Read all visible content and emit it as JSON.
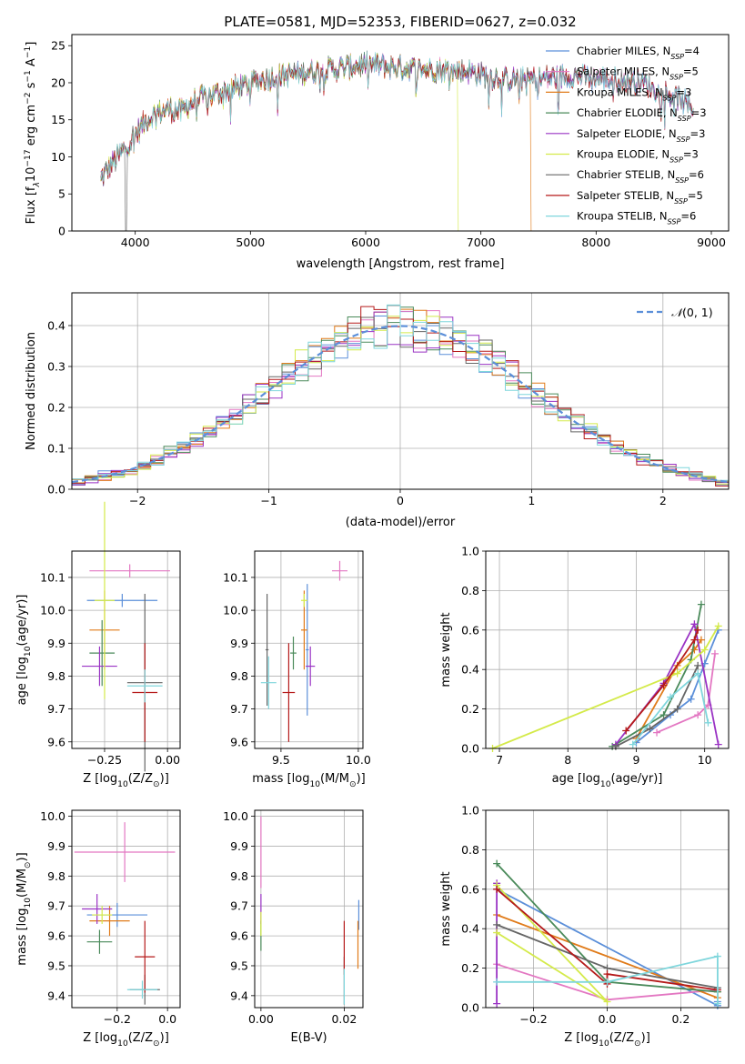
{
  "figure_title": "PLATE=0581, MJD=52353, FIBERID=0627, z=0.032",
  "colors": {
    "Chabrier MILES": "#5b8fd9",
    "Salpeter MILES": "#e377c2",
    "Kroupa MILES": "#e07b1a",
    "Chabrier ELODIE": "#4a8a5a",
    "Salpeter ELODIE": "#9a33c4",
    "Kroupa ELODIE": "#d4ea4a",
    "Chabrier STELIB": "#666666",
    "Salpeter STELIB": "#b51a1a",
    "Kroupa STELIB": "#7fd6dc"
  },
  "chart_data": [
    {
      "id": "spectrum",
      "type": "line",
      "title": "PLATE=0581, MJD=52353, FIBERID=0627, z=0.032",
      "xlabel": "wavelength [Angstrom, rest frame]",
      "ylabel_parts": [
        "Flux [f",
        "λ",
        "10",
        "−17",
        " erg cm",
        "−2",
        " s",
        "−1",
        " A",
        "−1",
        "]"
      ],
      "xlim": [
        3450,
        9150
      ],
      "ylim": [
        0,
        26.5
      ],
      "xticks": [
        4000,
        5000,
        6000,
        7000,
        8000,
        9000
      ],
      "yticks": [
        0,
        5,
        10,
        15,
        20,
        25
      ],
      "grid": false,
      "legend_position": "upper-right",
      "series": [
        {
          "name": "Chabrier MILES",
          "nssp": "4",
          "x_range": [
            3700,
            8850
          ]
        },
        {
          "name": "Salpeter MILES",
          "nssp": "5",
          "x_range": [
            3700,
            8850
          ]
        },
        {
          "name": "Kroupa MILES",
          "nssp": "3",
          "x_range": [
            3700,
            8850
          ],
          "drop_at": 7430
        },
        {
          "name": "Chabrier ELODIE",
          "nssp": "3",
          "x_range": [
            3700,
            8850
          ]
        },
        {
          "name": "Salpeter ELODIE",
          "nssp": "3",
          "x_range": [
            3700,
            8850
          ]
        },
        {
          "name": "Kroupa ELODIE",
          "nssp": "3",
          "x_range": [
            3700,
            8850
          ],
          "drop_at": 6800
        },
        {
          "name": "Chabrier STELIB",
          "nssp": "6",
          "x_range": [
            3700,
            8850
          ],
          "spike_at": 3920
        },
        {
          "name": "Salpeter STELIB",
          "nssp": "5",
          "x_range": [
            3700,
            8850
          ]
        },
        {
          "name": "Kroupa STELIB",
          "nssp": "6",
          "x_range": [
            3700,
            8850
          ]
        }
      ],
      "continuum": {
        "x": [
          3700,
          3800,
          3900,
          4000,
          4100,
          4200,
          4300,
          4400,
          4500,
          4700,
          4900,
          5100,
          5300,
          5500,
          5800,
          6000,
          6300,
          6600,
          6900,
          7200,
          7500,
          7800,
          8100,
          8400,
          8700,
          8850
        ],
        "y": [
          7,
          9,
          11,
          13,
          15,
          16,
          16.5,
          16,
          17.5,
          18.5,
          19.5,
          20.5,
          21,
          21.5,
          22,
          22.5,
          22,
          21.8,
          21.5,
          20.5,
          20.5,
          21,
          20.5,
          20,
          18,
          16.5
        ]
      }
    },
    {
      "id": "residuals",
      "type": "histogram",
      "xlabel": "(data-model)/error",
      "ylabel": "Normed distribution",
      "xlim": [
        -2.5,
        2.5
      ],
      "ylim": [
        0,
        0.48
      ],
      "xticks": [
        -2,
        -1,
        0,
        1,
        2
      ],
      "yticks": [
        0.0,
        0.1,
        0.2,
        0.3,
        0.4
      ],
      "bin_width": 0.1,
      "grid": true,
      "legend_position": "upper-right",
      "reference_curve": {
        "name": "N(0,1)",
        "label_parts": [
          "𝒩",
          "(0, 1)"
        ],
        "color": "#5b8fd9",
        "style": "dashed"
      }
    },
    {
      "id": "age-vs-z",
      "type": "errorbar",
      "xlabel_parts": [
        "Z [log",
        "10",
        "(Z/Z",
        "⊙",
        ")]"
      ],
      "ylabel_parts": [
        "age  [log",
        "10",
        "(age/yr)]"
      ],
      "xlim": [
        -0.38,
        0.05
      ],
      "ylim": [
        9.58,
        10.18
      ],
      "xticks": [
        -0.25,
        0.0
      ],
      "xticklabels": [
        "−0.25",
        "0.00"
      ],
      "yticks": [
        9.6,
        9.7,
        9.8,
        9.9,
        10.0,
        10.1
      ],
      "grid": true,
      "points": [
        {
          "series": "Chabrier MILES",
          "x": -0.18,
          "xerr": 0.14,
          "y": 10.03,
          "yerr": 0.02
        },
        {
          "series": "Salpeter MILES",
          "x": -0.15,
          "xerr": 0.16,
          "y": 10.12,
          "yerr": 0.02
        },
        {
          "series": "Kroupa MILES",
          "x": -0.25,
          "xerr": 0.06,
          "y": 9.94,
          "yerr": 0.12
        },
        {
          "series": "Chabrier ELODIE",
          "x": -0.26,
          "xerr": 0.05,
          "y": 9.87,
          "yerr": 0.1
        },
        {
          "series": "Salpeter ELODIE",
          "x": -0.27,
          "xerr": 0.07,
          "y": 9.83,
          "yerr": 0.06
        },
        {
          "series": "Kroupa ELODIE",
          "x": -0.25,
          "xerr": 0.04,
          "y": 10.03,
          "yerr": 0.3
        },
        {
          "series": "Chabrier STELIB",
          "x": -0.09,
          "xerr": 0.07,
          "y": 9.78,
          "yerr": 0.27
        },
        {
          "series": "Salpeter STELIB",
          "x": -0.09,
          "xerr": 0.05,
          "y": 9.75,
          "yerr": 0.15
        },
        {
          "series": "Kroupa STELIB",
          "x": -0.09,
          "xerr": 0.07,
          "y": 9.77,
          "yerr": 0.05
        }
      ]
    },
    {
      "id": "age-vs-mass",
      "type": "errorbar",
      "xlabel_parts": [
        "mass [log",
        "10",
        "(M/M",
        "⊙",
        ")]"
      ],
      "ylabel": "",
      "xlim": [
        9.33,
        10.03
      ],
      "ylim": [
        9.58,
        10.18
      ],
      "xticks": [
        9.5,
        10.0
      ],
      "xticklabels": [
        "9.5",
        "10.0"
      ],
      "yticks": [
        9.6,
        9.7,
        9.8,
        9.9,
        10.0,
        10.1
      ],
      "grid": true,
      "points": [
        {
          "series": "Chabrier MILES",
          "x": 9.67,
          "xerr": 0.01,
          "y": 9.88,
          "yerr": 0.2
        },
        {
          "series": "Salpeter MILES",
          "x": 9.88,
          "xerr": 0.05,
          "y": 10.12,
          "yerr": 0.03
        },
        {
          "series": "Kroupa MILES",
          "x": 9.65,
          "xerr": 0.02,
          "y": 9.94,
          "yerr": 0.12
        },
        {
          "series": "Chabrier ELODIE",
          "x": 9.58,
          "xerr": 0.02,
          "y": 9.87,
          "yerr": 0.05
        },
        {
          "series": "Salpeter ELODIE",
          "x": 9.69,
          "xerr": 0.03,
          "y": 9.83,
          "yerr": 0.06
        },
        {
          "series": "Kroupa ELODIE",
          "x": 9.65,
          "xerr": 0.02,
          "y": 10.03,
          "yerr": 0.02
        },
        {
          "series": "Chabrier STELIB",
          "x": 9.41,
          "xerr": 0.01,
          "y": 9.88,
          "yerr": 0.17
        },
        {
          "series": "Salpeter STELIB",
          "x": 9.55,
          "xerr": 0.04,
          "y": 9.75,
          "yerr": 0.15
        },
        {
          "series": "Kroupa STELIB",
          "x": 9.42,
          "xerr": 0.05,
          "y": 9.78,
          "yerr": 0.08
        }
      ]
    },
    {
      "id": "weight-vs-age",
      "type": "line",
      "xlabel_parts": [
        "age  [log",
        "10",
        "(age/yr)]"
      ],
      "ylabel": "mass weight",
      "xlim": [
        6.8,
        10.35
      ],
      "ylim": [
        0,
        1
      ],
      "xticks": [
        7,
        8,
        9,
        10
      ],
      "yticks": [
        0.0,
        0.2,
        0.4,
        0.6,
        0.8,
        1.0
      ],
      "grid": true,
      "series": [
        {
          "name": "Chabrier MILES",
          "x": [
            9.0,
            9.5,
            9.8,
            10.0,
            10.2
          ],
          "y": [
            0.03,
            0.17,
            0.25,
            0.43,
            0.6
          ]
        },
        {
          "name": "Salpeter MILES",
          "x": [
            9.3,
            9.9,
            10.05,
            10.15
          ],
          "y": [
            0.08,
            0.17,
            0.22,
            0.48
          ]
        },
        {
          "name": "Kroupa MILES",
          "x": [
            9.0,
            9.6,
            9.85,
            9.95
          ],
          "y": [
            0.05,
            0.42,
            0.5,
            0.55
          ]
        },
        {
          "name": "Chabrier ELODIE",
          "x": [
            8.65,
            9.4,
            9.8,
            9.95
          ],
          "y": [
            0.01,
            0.17,
            0.45,
            0.73
          ]
        },
        {
          "name": "Salpeter ELODIE",
          "x": [
            8.7,
            9.4,
            9.85,
            10.2
          ],
          "y": [
            0.02,
            0.33,
            0.63,
            0.02
          ]
        },
        {
          "name": "Kroupa ELODIE",
          "x": [
            6.9,
            9.6,
            10.0,
            10.2
          ],
          "y": [
            0.0,
            0.38,
            0.5,
            0.62
          ]
        },
        {
          "name": "Chabrier STELIB",
          "x": [
            8.7,
            9.2,
            9.6,
            9.9
          ],
          "y": [
            0.01,
            0.1,
            0.2,
            0.42
          ]
        },
        {
          "name": "Salpeter STELIB",
          "x": [
            8.85,
            9.4,
            9.85,
            9.9
          ],
          "y": [
            0.09,
            0.32,
            0.55,
            0.6
          ]
        },
        {
          "name": "Kroupa STELIB",
          "x": [
            8.95,
            9.5,
            9.9,
            10.05
          ],
          "y": [
            0.02,
            0.26,
            0.38,
            0.13
          ]
        }
      ]
    },
    {
      "id": "mass-vs-z",
      "type": "errorbar",
      "xlabel_parts": [
        "Z [log",
        "10",
        "(Z/Z",
        "⊙",
        ")]"
      ],
      "ylabel_parts": [
        "mass [log",
        "10",
        "(M/M",
        "⊙",
        ")]"
      ],
      "xlim": [
        -0.38,
        0.05
      ],
      "ylim": [
        9.36,
        10.02
      ],
      "xticks": [
        -0.2,
        0.0
      ],
      "xticklabels": [
        "−0.2",
        "0.0"
      ],
      "yticks": [
        9.4,
        9.5,
        9.6,
        9.7,
        9.8,
        9.9,
        10.0
      ],
      "grid": true,
      "points": [
        {
          "series": "Chabrier MILES",
          "x": -0.2,
          "xerr": 0.12,
          "y": 9.67,
          "yerr": 0.04
        },
        {
          "series": "Salpeter MILES",
          "x": -0.17,
          "xerr": 0.2,
          "y": 9.88,
          "yerr": 0.1
        },
        {
          "series": "Kroupa MILES",
          "x": -0.23,
          "xerr": 0.08,
          "y": 9.65,
          "yerr": 0.05
        },
        {
          "series": "Chabrier ELODIE",
          "x": -0.27,
          "xerr": 0.05,
          "y": 9.58,
          "yerr": 0.04
        },
        {
          "series": "Salpeter ELODIE",
          "x": -0.28,
          "xerr": 0.06,
          "y": 9.69,
          "yerr": 0.05
        },
        {
          "series": "Kroupa ELODIE",
          "x": -0.26,
          "xerr": 0.04,
          "y": 9.67,
          "yerr": 0.03
        },
        {
          "series": "Chabrier STELIB",
          "x": -0.09,
          "xerr": 0.06,
          "y": 9.42,
          "yerr": 0.05
        },
        {
          "series": "Salpeter STELIB",
          "x": -0.09,
          "xerr": 0.04,
          "y": 9.53,
          "yerr": 0.12
        },
        {
          "series": "Kroupa STELIB",
          "x": -0.1,
          "xerr": 0.06,
          "y": 9.42,
          "yerr": 0.03
        }
      ]
    },
    {
      "id": "mass-vs-ebv",
      "type": "errorbar",
      "xlabel": "E(B-V)",
      "ylabel": "",
      "xlim": [
        -0.0015,
        0.0245
      ],
      "ylim": [
        9.36,
        10.02
      ],
      "xticks": [
        0.0,
        0.02
      ],
      "xticklabels": [
        "0.00",
        "0.02"
      ],
      "yticks": [
        9.4,
        9.5,
        9.6,
        9.7,
        9.8,
        9.9,
        10.0
      ],
      "grid": true,
      "points": [
        {
          "series": "Chabrier MILES",
          "x": 0.0235,
          "xerr": 0,
          "y": 9.67,
          "yerr": 0.05
        },
        {
          "series": "Salpeter MILES",
          "x": 0.0,
          "xerr": 0,
          "y": 9.88,
          "yerr": 0.12
        },
        {
          "series": "Kroupa MILES",
          "x": 0.0233,
          "xerr": 0,
          "y": 9.57,
          "yerr": 0.08
        },
        {
          "series": "Chabrier ELODIE",
          "x": 0.0,
          "xerr": 0,
          "y": 9.6,
          "yerr": 0.05
        },
        {
          "series": "Salpeter ELODIE",
          "x": 0.0,
          "xerr": 0,
          "y": 9.69,
          "yerr": 0.05
        },
        {
          "series": "Kroupa ELODIE",
          "x": 0.0,
          "xerr": 0,
          "y": 9.64,
          "yerr": 0.04
        },
        {
          "series": "Chabrier STELIB",
          "x": 0.02,
          "xerr": 0,
          "y": 9.45,
          "yerr": 0.08
        },
        {
          "series": "Salpeter STELIB",
          "x": 0.02,
          "xerr": 0,
          "y": 9.56,
          "yerr": 0.09
        },
        {
          "series": "Kroupa STELIB",
          "x": 0.02,
          "xerr": 0,
          "y": 9.43,
          "yerr": 0.06
        }
      ]
    },
    {
      "id": "weight-vs-z",
      "type": "line",
      "xlabel_parts": [
        "Z [log",
        "10",
        "(Z/Z",
        "⊙",
        ")]"
      ],
      "ylabel": "mass weight",
      "xlim": [
        -0.33,
        0.33
      ],
      "ylim": [
        0,
        1
      ],
      "xticks": [
        -0.2,
        0.0,
        0.2
      ],
      "xticklabels": [
        "−0.2",
        "0.0",
        "0.2"
      ],
      "yticks": [
        0.0,
        0.2,
        0.4,
        0.6,
        0.8,
        1.0
      ],
      "grid": true,
      "series": [
        {
          "name": "Chabrier MILES",
          "x": [
            -0.3,
            0.3,
            0.3
          ],
          "y": [
            0.6,
            0.01,
            0.03
          ]
        },
        {
          "name": "Salpeter MILES",
          "x": [
            -0.3,
            0.0,
            0.3
          ],
          "y": [
            0.22,
            0.04,
            0.09
          ]
        },
        {
          "name": "Kroupa MILES",
          "x": [
            -0.3,
            0.3,
            0.3
          ],
          "y": [
            0.47,
            0.05,
            0.08
          ]
        },
        {
          "name": "Chabrier ELODIE",
          "x": [
            -0.3,
            0.0,
            0.3
          ],
          "y": [
            0.73,
            0.13,
            0.08
          ]
        },
        {
          "name": "Salpeter ELODIE",
          "x": [
            -0.3,
            -0.3
          ],
          "y": [
            0.02,
            0.63
          ]
        },
        {
          "name": "Kroupa ELODIE",
          "x": [
            -0.3,
            0.0,
            -0.3
          ],
          "y": [
            0.62,
            0.03,
            0.38
          ]
        },
        {
          "name": "Chabrier STELIB",
          "x": [
            -0.3,
            0.0,
            0.3
          ],
          "y": [
            0.42,
            0.2,
            0.1
          ]
        },
        {
          "name": "Salpeter STELIB",
          "x": [
            -0.3,
            0.0,
            0.0,
            0.3
          ],
          "y": [
            0.6,
            0.12,
            0.17,
            0.09
          ]
        },
        {
          "name": "Kroupa STELIB",
          "x": [
            -0.3,
            0.0,
            0.3,
            0.3
          ],
          "y": [
            0.13,
            0.13,
            0.26,
            0.02
          ]
        }
      ]
    }
  ]
}
